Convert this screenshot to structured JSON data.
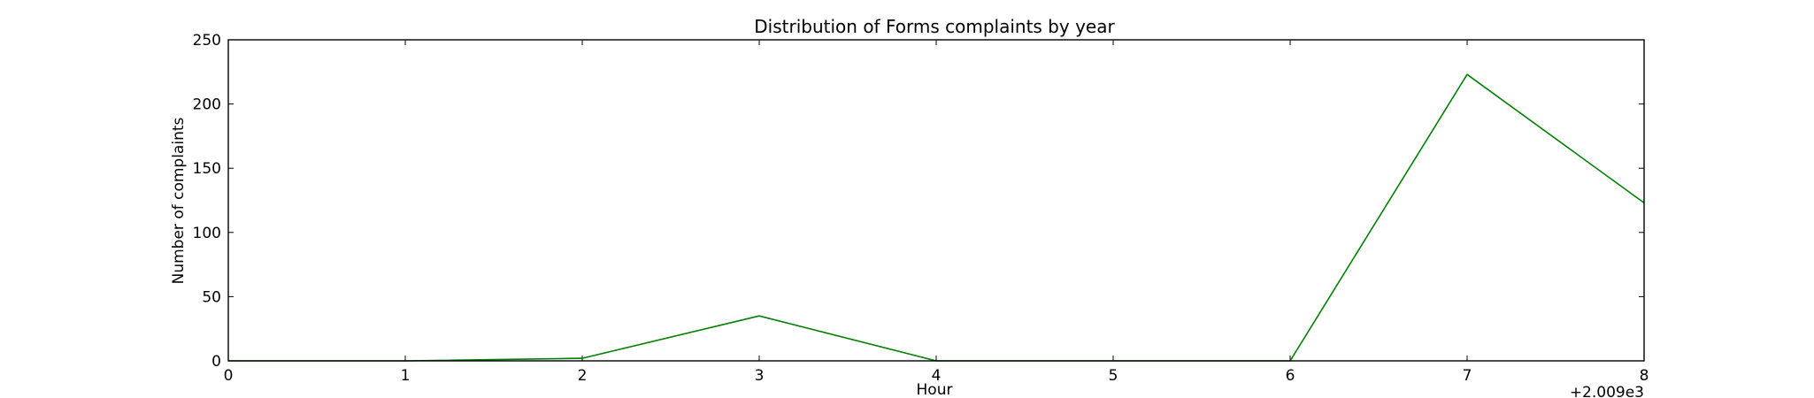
{
  "chart_data": {
    "type": "line",
    "title": "Distribution of  Forms complaints by year",
    "xlabel": "Hour",
    "ylabel": "Number of complaints",
    "x_offset_label": "+2.009e3",
    "xlim": [
      0,
      8
    ],
    "ylim": [
      0,
      250
    ],
    "x_ticks": [
      "0",
      "1",
      "2",
      "3",
      "4",
      "5",
      "6",
      "7",
      "8"
    ],
    "y_ticks": [
      "0",
      "50",
      "100",
      "150",
      "200",
      "250"
    ],
    "grid": false,
    "legend": "none",
    "series": [
      {
        "color": "#008000",
        "x": [
          0,
          1,
          2,
          3,
          4,
          5,
          6,
          7,
          8
        ],
        "values": [
          0,
          0,
          2,
          35,
          0,
          0,
          0,
          223,
          123
        ]
      }
    ]
  }
}
